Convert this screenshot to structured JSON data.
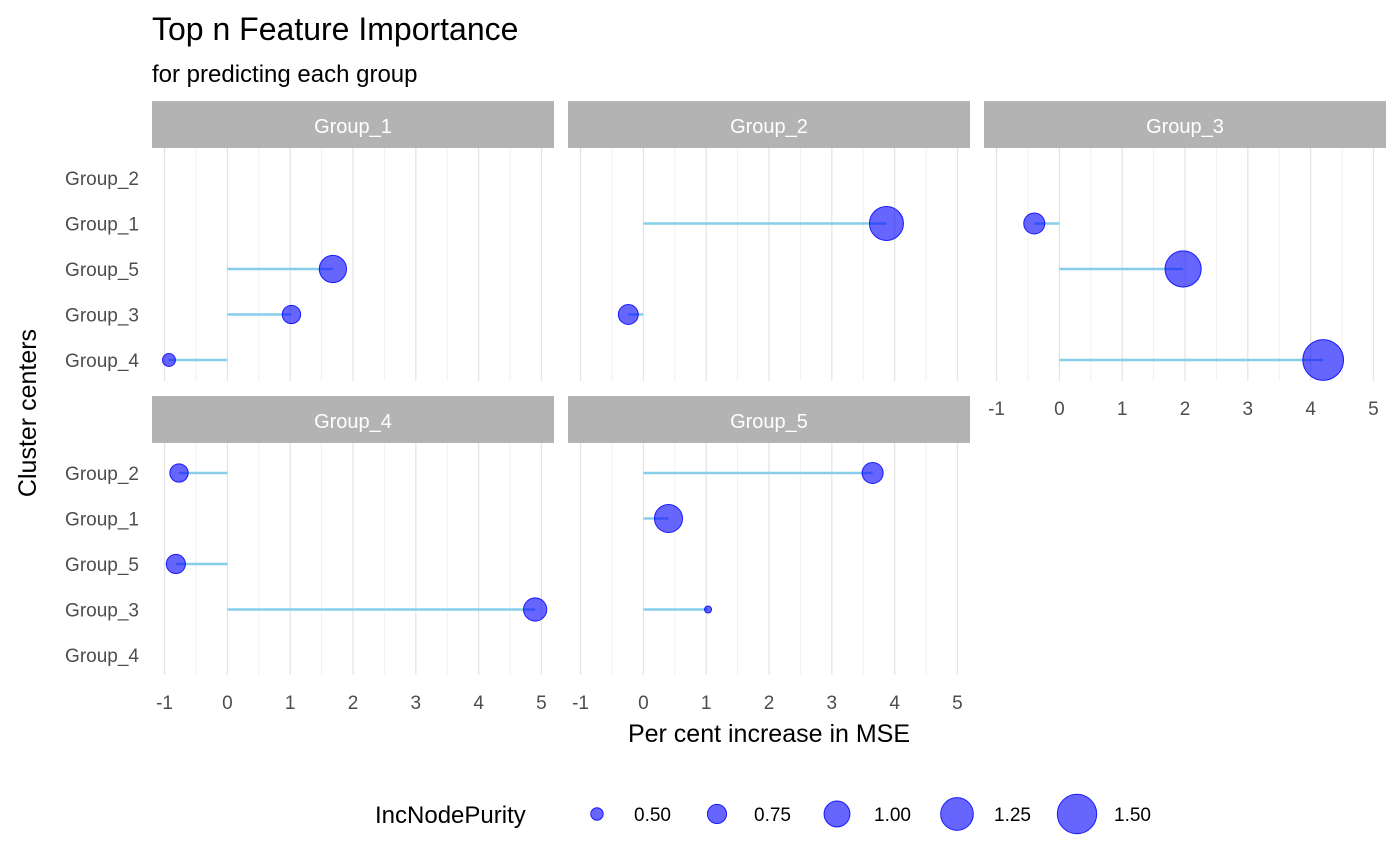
{
  "chart_data": {
    "type": "scatter",
    "title": "Top n Feature Importance",
    "subtitle": "for predicting each group",
    "xlabel": "Per cent increase in MSE",
    "ylabel": "Cluster centers",
    "xlim": [
      -1.2,
      5.2
    ],
    "x_ticks": [
      "-1",
      "0",
      "1",
      "2",
      "3",
      "4",
      "5"
    ],
    "x_tick_values": [
      -1,
      0,
      1,
      2,
      3,
      4,
      5
    ],
    "grid": true,
    "segment_color": "#87CEEB",
    "point_color": "#0000FF",
    "strip_color": "#B3B3B3",
    "legend": {
      "title": "IncNodePurity",
      "position": "bottom",
      "values": [
        0.5,
        0.75,
        1.0,
        1.25,
        1.5
      ],
      "labels": [
        "0.50",
        "0.75",
        "1.00",
        "1.25",
        "1.50"
      ]
    },
    "panels": [
      {
        "name": "Group_1",
        "categories": [
          "Group_2",
          "Group_1",
          "Group_5",
          "Group_3",
          "Group_4"
        ],
        "points": [
          {
            "category": "Group_5",
            "x": 1.68,
            "size": 1.05
          },
          {
            "category": "Group_3",
            "x": 1.02,
            "size": 0.72
          },
          {
            "category": "Group_4",
            "x": -0.93,
            "size": 0.52
          }
        ]
      },
      {
        "name": "Group_2",
        "categories": [
          "Group_2",
          "Group_1",
          "Group_5",
          "Group_3",
          "Group_4"
        ],
        "points": [
          {
            "category": "Group_1",
            "x": 3.87,
            "size": 1.3
          },
          {
            "category": "Group_3",
            "x": -0.24,
            "size": 0.78
          }
        ]
      },
      {
        "name": "Group_3",
        "categories": [
          "Group_2",
          "Group_1",
          "Group_5",
          "Group_3",
          "Group_4"
        ],
        "points": [
          {
            "category": "Group_1",
            "x": -0.4,
            "size": 0.82
          },
          {
            "category": "Group_5",
            "x": 1.97,
            "size": 1.38
          },
          {
            "category": "Group_4",
            "x": 4.2,
            "size": 1.55
          }
        ]
      },
      {
        "name": "Group_4",
        "categories": [
          "Group_2",
          "Group_1",
          "Group_5",
          "Group_3",
          "Group_4"
        ],
        "points": [
          {
            "category": "Group_2",
            "x": -0.77,
            "size": 0.72
          },
          {
            "category": "Group_5",
            "x": -0.82,
            "size": 0.75
          },
          {
            "category": "Group_3",
            "x": 4.9,
            "size": 0.9
          }
        ]
      },
      {
        "name": "Group_5",
        "categories": [
          "Group_2",
          "Group_1",
          "Group_5",
          "Group_3",
          "Group_4"
        ],
        "points": [
          {
            "category": "Group_2",
            "x": 3.65,
            "size": 0.82
          },
          {
            "category": "Group_1",
            "x": 0.4,
            "size": 1.08
          },
          {
            "category": "Group_3",
            "x": 1.03,
            "size": 0.3
          }
        ]
      }
    ]
  }
}
